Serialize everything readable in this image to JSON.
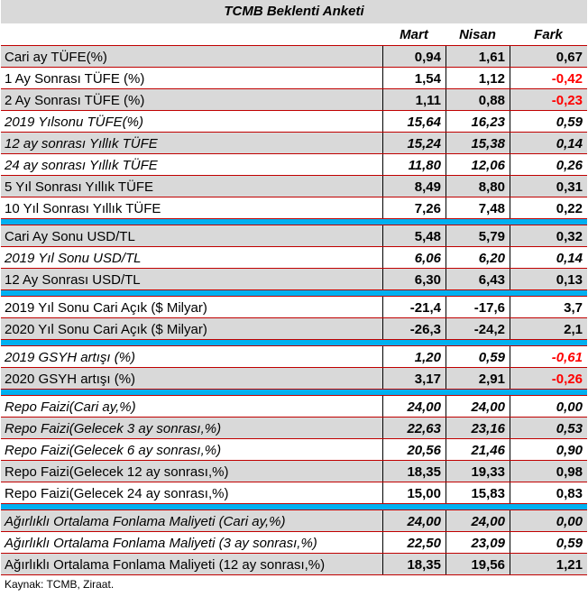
{
  "title": "TCMB Beklenti Anketi",
  "columns": [
    "",
    "Mart",
    "Nisan",
    "Fark"
  ],
  "sections": [
    {
      "rows": [
        {
          "label": "Cari ay TÜFE(%)",
          "mart": "0,94",
          "nisan": "1,61",
          "fark": "0,67",
          "shaded": true,
          "italic": false,
          "fark_negative": false
        },
        {
          "label": "1 Ay Sonrası TÜFE (%)",
          "mart": "1,54",
          "nisan": "1,12",
          "fark": "-0,42",
          "shaded": false,
          "italic": false,
          "fark_negative": true
        },
        {
          "label": "2 Ay Sonrası TÜFE (%)",
          "mart": "1,11",
          "nisan": "0,88",
          "fark": "-0,23",
          "shaded": true,
          "italic": false,
          "fark_negative": true
        },
        {
          "label": "2019 Yılsonu TÜFE(%)",
          "mart": "15,64",
          "nisan": "16,23",
          "fark": "0,59",
          "shaded": false,
          "italic": true,
          "fark_negative": false
        },
        {
          "label": "12 ay sonrası Yıllık TÜFE",
          "mart": "15,24",
          "nisan": "15,38",
          "fark": "0,14",
          "shaded": true,
          "italic": true,
          "fark_negative": false
        },
        {
          "label": "24 ay sonrası Yıllık TÜFE",
          "mart": "11,80",
          "nisan": "12,06",
          "fark": "0,26",
          "shaded": false,
          "italic": true,
          "fark_negative": false
        },
        {
          "label": "5 Yıl Sonrası Yıllık TÜFE",
          "mart": "8,49",
          "nisan": "8,80",
          "fark": "0,31",
          "shaded": true,
          "italic": false,
          "fark_negative": false
        },
        {
          "label": "10 Yıl Sonrası Yıllık TÜFE",
          "mart": "7,26",
          "nisan": "7,48",
          "fark": "0,22",
          "shaded": false,
          "italic": false,
          "fark_negative": false
        }
      ]
    },
    {
      "rows": [
        {
          "label": "Cari Ay Sonu USD/TL",
          "mart": "5,48",
          "nisan": "5,79",
          "fark": "0,32",
          "shaded": true,
          "italic": false,
          "fark_negative": false
        },
        {
          "label": "2019 Yıl Sonu USD/TL",
          "mart": "6,06",
          "nisan": "6,20",
          "fark": "0,14",
          "shaded": false,
          "italic": true,
          "fark_negative": false
        },
        {
          "label": "12 Ay Sonrası USD/TL",
          "mart": "6,30",
          "nisan": "6,43",
          "fark": "0,13",
          "shaded": true,
          "italic": false,
          "fark_negative": false
        }
      ]
    },
    {
      "rows": [
        {
          "label": "2019 Yıl Sonu Cari Açık ($ Milyar)",
          "mart": "-21,4",
          "nisan": "-17,6",
          "fark": "3,7",
          "shaded": false,
          "italic": false,
          "fark_negative": false
        },
        {
          "label": "2020 Yıl Sonu Cari Açık ($ Milyar)",
          "mart": "-26,3",
          "nisan": "-24,2",
          "fark": "2,1",
          "shaded": true,
          "italic": false,
          "fark_negative": false
        }
      ]
    },
    {
      "rows": [
        {
          "label": "2019 GSYH artışı (%)",
          "mart": "1,20",
          "nisan": "0,59",
          "fark": "-0,61",
          "shaded": false,
          "italic": true,
          "fark_negative": true
        },
        {
          "label": "2020 GSYH artışı (%)",
          "mart": "3,17",
          "nisan": "2,91",
          "fark": "-0,26",
          "shaded": true,
          "italic": false,
          "fark_negative": true
        }
      ]
    },
    {
      "rows": [
        {
          "label": "Repo Faizi(Cari ay,%)",
          "mart": "24,00",
          "nisan": "24,00",
          "fark": "0,00",
          "shaded": false,
          "italic": true,
          "fark_negative": false
        },
        {
          "label": "Repo Faizi(Gelecek 3 ay sonrası,%)",
          "mart": "22,63",
          "nisan": "23,16",
          "fark": "0,53",
          "shaded": true,
          "italic": true,
          "fark_negative": false
        },
        {
          "label": "Repo Faizi(Gelecek 6 ay sonrası,%)",
          "mart": "20,56",
          "nisan": "21,46",
          "fark": "0,90",
          "shaded": false,
          "italic": true,
          "fark_negative": false
        },
        {
          "label": "Repo Faizi(Gelecek 12 ay sonrası,%)",
          "mart": "18,35",
          "nisan": "19,33",
          "fark": "0,98",
          "shaded": true,
          "italic": false,
          "fark_negative": false
        },
        {
          "label": "Repo Faizi(Gelecek 24 ay sonrası,%)",
          "mart": "15,00",
          "nisan": "15,83",
          "fark": "0,83",
          "shaded": false,
          "italic": false,
          "fark_negative": false
        }
      ]
    },
    {
      "rows": [
        {
          "label": "Ağırlıklı Ortalama Fonlama Maliyeti (Cari ay,%)",
          "mart": "24,00",
          "nisan": "24,00",
          "fark": "0,00",
          "shaded": true,
          "italic": true,
          "fark_negative": false
        },
        {
          "label": "Ağırlıklı Ortalama Fonlama Maliyeti (3 ay sonrası,%)",
          "mart": "22,50",
          "nisan": "23,09",
          "fark": "0,59",
          "shaded": false,
          "italic": true,
          "fark_negative": false
        },
        {
          "label": "Ağırlıklı Ortalama Fonlama Maliyeti (12 ay sonrası,%)",
          "mart": "18,35",
          "nisan": "19,56",
          "fark": "1,21",
          "shaded": true,
          "italic": false,
          "fark_negative": false
        }
      ]
    }
  ],
  "source": "Kaynak: TCMB, Ziraat.",
  "colors": {
    "shade": "#d9d9d9",
    "separator": "#00b0f0",
    "rule": "#c00000",
    "negative": "#ff0000"
  }
}
